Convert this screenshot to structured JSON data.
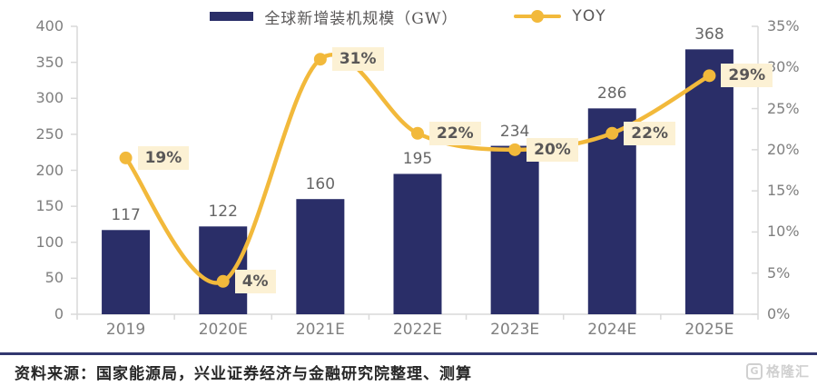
{
  "chart_data": {
    "type": "bar+line",
    "categories": [
      "2019",
      "2020E",
      "2021E",
      "2022E",
      "2023E",
      "2024E",
      "2025E"
    ],
    "series": [
      {
        "name": "全球新增装机规模（GW）",
        "type": "bar",
        "axis": "left",
        "unit": "GW",
        "values": [
          117,
          122,
          160,
          195,
          234,
          286,
          368
        ],
        "color": "#2A2E68"
      },
      {
        "name": "YOY",
        "type": "line",
        "axis": "right",
        "values_percent": [
          19,
          4,
          31,
          22,
          20,
          22,
          29
        ],
        "point_labels": [
          "19%",
          "4%",
          "31%",
          "22%",
          "20%",
          "22%",
          "29%"
        ],
        "color": "#F2B93B",
        "label_bg": "#FCF1D4"
      }
    ],
    "left_axis": {
      "min": 0,
      "max": 400,
      "tick_step": 50,
      "tick_labels": [
        "400",
        "350",
        "300",
        "250",
        "200",
        "150",
        "100",
        "50",
        "0"
      ]
    },
    "right_axis": {
      "min_pct": 0,
      "max_pct": 35,
      "tick_step_pct": 5,
      "tick_labels": [
        "35%",
        "30%",
        "25%",
        "20%",
        "15%",
        "10%",
        "5%",
        "0%"
      ]
    },
    "grid": "off",
    "legend_position": "top-center",
    "line_smooth": true
  },
  "footer": {
    "source": "资料来源：国家能源局，兴业证券经济与金融研究院整理、测算",
    "logo_g": "G",
    "logo_text": "格隆汇"
  }
}
